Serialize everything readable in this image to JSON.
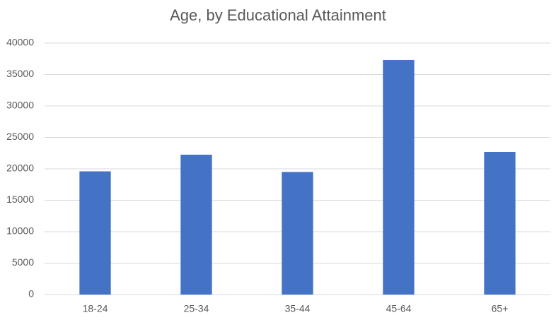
{
  "chart_data": {
    "type": "bar",
    "title": "Age, by Educational Attainment",
    "categories": [
      "18-24",
      "25-34",
      "35-44",
      "45-64",
      "65+"
    ],
    "values": [
      19600,
      22250,
      19500,
      37300,
      22700
    ],
    "color": "#4472c4",
    "ylim": [
      0,
      40000
    ],
    "yticks": [
      0,
      5000,
      10000,
      15000,
      20000,
      25000,
      30000,
      35000,
      40000
    ],
    "grid": true
  }
}
